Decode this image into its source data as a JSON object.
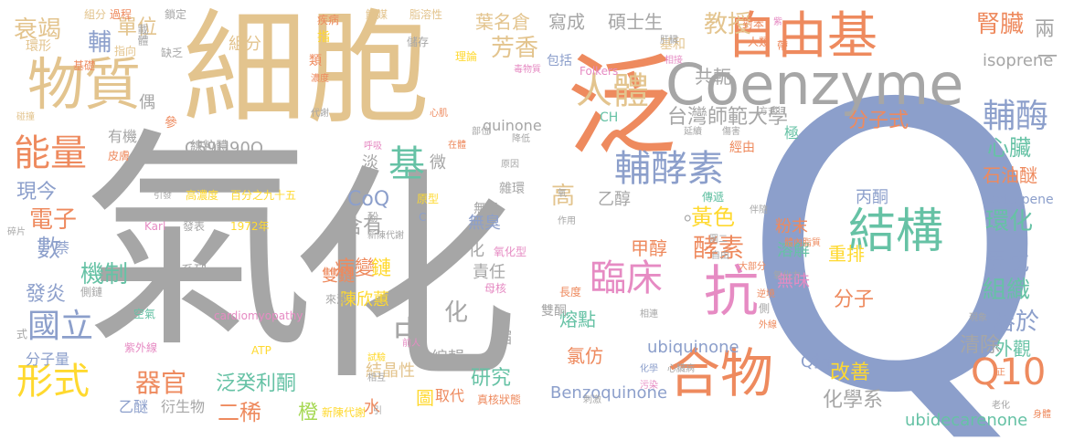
{
  "colors": {
    "background": "#ffffff",
    "sand": "#e3c48e",
    "gray": "#a6a6a6",
    "orange": "#ee8a5e",
    "periwinkle": "#8c9fcb",
    "teal": "#66c2a5",
    "lime": "#a6d854",
    "yellow": "#ffd92f",
    "pink": "#e68bc3"
  },
  "words": {
    "qi": "氣",
    "hua": "化",
    "xibao": "細胞",
    "fan": "泛",
    "q": "Q",
    "coenzyme": "Coenzyme",
    "ziyouji": "自由基",
    "wuzhi": "物質",
    "hewu": "合物",
    "jiegou": "結構",
    "kang": "抗",
    "linchuang": "臨床",
    "fujiaosu": "輔酵素",
    "renti": "人體",
    "nengliang": "能量",
    "ji": "基",
    "q10": "Q10",
    "xingshi": "形式",
    "guoli": "國立",
    "zhong": "中",
    "taiwan": "台灣師範大學",
    "fumei": "輔酶",
    "jiaoshou": "教授",
    "fangxiang": "芳香",
    "shenzang": "腎臟",
    "zhongbu": "中部",
    "shuoshi": "碩士生",
    "yeming": "葉名倉",
    "xiecheng": "寫成",
    "liang": "兩",
    "gongye": "共軛",
    "fenzishi": "分子式",
    "fenzi": "分子",
    "xinzang": "心臟",
    "shiyoumi": "石油醚",
    "isoprene": "isoprene",
    "isoterpene": "isoterpene",
    "yiwu": "異戊",
    "huanhua": "環化",
    "zuzhi": "組織",
    "rongyu": "溶於",
    "waiguan": "外觀",
    "qingchu": "清除",
    "gaishan": "改善",
    "huaxuexi": "化學系",
    "ubidecarenone": "ubidecarenone",
    "ubiquinone": "ubiquinone",
    "benzoquinone": "Benzoquinone",
    "quinone": "quinone",
    "c59": "C59H90O",
    "shuailuan": "衰竭",
    "danwei": "單位",
    "fu": "輔",
    "jiyuan": "機制",
    "fayan": "發炎",
    "dianzi": "電子",
    "shu": "數",
    "xianjin": "現今",
    "qiguan": "器官",
    "fanguili": "泛癸利酮",
    "erxi": "二稀",
    "yimi": "乙醚",
    "yanshengwu": "衍生物",
    "cheng": "橙",
    "shui": "水",
    "jiejingxing": "結晶性",
    "tu": "圖",
    "yanjiu": "研究",
    "qudai": "取代",
    "zhenhe": "真核狀態",
    "lvfang": "氯仿",
    "ben": "苯",
    "rongdian": "熔點",
    "shuangtong": "雙酮",
    "bingbian": "病變",
    "lian": "鏈",
    "chenxinhui": "陳欣蕙",
    "shuangjian": "雙鏈",
    "zeren": "責任",
    "jiaosu": "酵素",
    "jiachun": "甲醇",
    "hanyou": "含有",
    "huangse": "黃色",
    "bingtong": "丙酮",
    "fenmo": "粉末",
    "chongpai": "重排",
    "rongjie": "溶解",
    "wuwei": "無味",
    "wuchou": "無臭",
    "gao": "高",
    "yichun": "乙醇",
    "coq": "CoQ",
    "xiaoo": "。",
    "qzhi": "Q指",
    "youji": "有機",
    "xianliti": "線粒體",
    "pifu": "皮膚",
    "bainfen": "百分之九十五",
    "gaonongdu": "高濃度",
    "yinyin": "引發",
    "karl": "Karl",
    "fabiao": "發表",
    "year": "1972年",
    "qiqi": "萘",
    "suipian": "碎片",
    "xilie": "系列",
    "laiyuan": "來源",
    "cardio": "cardiomyopathy",
    "atp": "ATP",
    "kongqi": "空氣",
    "ziwaixian": "紫外線",
    "qianren": "前人",
    "shiyan": "試驗",
    "xianghu": "相互",
    "huaxue": "化學",
    "xinzangbing": "心臟病",
    "wuran": "污染",
    "bianji": "編輯",
    "suo": "縮",
    "huo": "化",
    "wei": "微",
    "dan": "淡",
    "folkers": "Folkers",
    "ch": "CH",
    "lilun": "理論",
    "chucun": "儲存",
    "baokuo": "包括",
    "zhirongxing": "脂溶性",
    "xinji": "心肌",
    "bulwei": "部位",
    "yuanyin": "原因",
    "jiangdi": "降低",
    "zaiti": "在體",
    "zuoyong": "作用",
    "yuanxing": "原型",
    "zaxun": "雜環",
    "yanghuaxing": "氧化型",
    "muhe": "母核",
    "changdu": "長度",
    "xianglian": "相連",
    "xinchendaixie": "新陳代謝",
    "hu": "呼吸",
    "fen": "酚",
    "c": "C",
    "yang": "氧",
    "gan": "肝臟",
    "xiangji": "相接",
    "jijihe": "基和",
    "renlei": "人類",
    "duiben": "對苯",
    "zi": "紫",
    "dai": "帶",
    "fangshi": "方式",
    "yanxu": "延續",
    "shanghai": "傷害",
    "jingyou": "經由",
    "ji2": "極",
    "tuer": "圖二",
    "ziyou": "自由",
    "tiniaozhi": "體內脂質",
    "banshui": "伴隨",
    "chuandi": "傳遞",
    "dabufen": "大部分",
    "yanghuali": "氧化力",
    "niyuan": "逆境",
    "ce": "側",
    "waixian": "外線",
    "xianxiang": "現象",
    "zheng": "正",
    "laohua": "老化",
    "shenti": "身體",
    "qianxi": "前提",
    "chujian": "觸媒",
    "cewai": "側鏈",
    "shi": "式",
    "zhimo": "疾病",
    "rongyi": "容易",
    "shi2": "時",
    "huanxing": "環形",
    "jijian": "基礎",
    "zhixiang": "指向",
    "quefa": "缺乏",
    "zhi": "指",
    "nongdu": "濃度",
    "sai": "塞",
    "daixie": "代謝",
    "can": "參",
    "ou": "偶",
    "lei": "類",
    "zuhe": "組分",
    "guocheng": "過程",
    "suoding": "鎖定",
    "niuhuang": "載體",
    "pengzhuang": "碰撞",
    "dujing": "毒物質",
    "gang": "鋼",
    "fengjie": "分子量",
    "guangai": "廣泛",
    "xiangpian": "象片",
    "shuo": "說",
    "yin": "引",
    "cijian": "刺激",
    "weixing": "體內",
    "yi": "一"
  }
}
